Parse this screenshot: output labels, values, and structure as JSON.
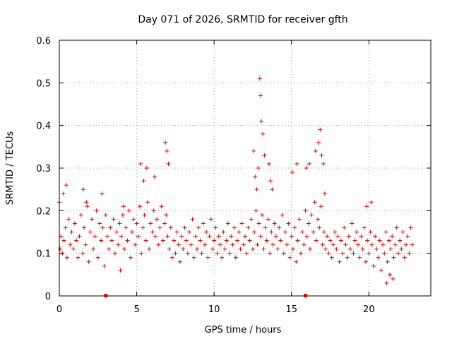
{
  "chart_data": {
    "type": "scatter",
    "title": "Day 071 of 2026, SRMTID for receiver gfth",
    "xlabel": "GPS time / hours",
    "ylabel": "SRMTID / TECUs",
    "xlim": [
      0,
      24
    ],
    "ylim": [
      0,
      0.6
    ],
    "x_ticks": [
      0,
      5,
      10,
      15,
      20
    ],
    "x_tick_labels": [
      "0",
      "5",
      "10",
      "15",
      "20"
    ],
    "y_ticks": [
      0,
      0.1,
      0.2,
      0.3,
      0.4,
      0.5,
      0.6
    ],
    "y_tick_labels": [
      "0",
      "0.1",
      "0.2",
      "0.3",
      "0.4",
      "0.5",
      "0.6"
    ],
    "grid": true,
    "marker": "plus",
    "color": "#e00000",
    "series": [
      {
        "name": "SRMTID",
        "x": [
          0.0,
          0.1,
          0.2,
          0.3,
          0.4,
          0.5,
          0.6,
          0.7,
          0.8,
          0.9,
          1.0,
          1.1,
          1.2,
          1.3,
          1.4,
          1.5,
          1.6,
          1.7,
          1.8,
          1.9,
          2.0,
          2.1,
          2.2,
          2.3,
          2.4,
          2.5,
          2.6,
          2.7,
          2.8,
          2.9,
          3.0,
          3.1,
          3.2,
          3.3,
          3.4,
          3.5,
          3.6,
          3.7,
          3.8,
          3.9,
          4.0,
          4.1,
          4.2,
          4.3,
          4.4,
          4.5,
          4.6,
          4.7,
          4.8,
          4.9,
          5.0,
          5.1,
          5.2,
          5.3,
          5.4,
          5.5,
          5.6,
          5.7,
          5.8,
          5.9,
          6.0,
          6.1,
          6.2,
          6.3,
          6.4,
          6.5,
          6.6,
          6.7,
          6.8,
          6.9,
          7.0,
          7.1,
          7.2,
          7.3,
          7.4,
          7.5,
          7.6,
          7.7,
          7.8,
          7.9,
          8.0,
          8.1,
          8.2,
          8.3,
          8.4,
          8.5,
          8.6,
          8.7,
          8.8,
          8.9,
          9.0,
          9.1,
          9.2,
          9.3,
          9.4,
          9.5,
          9.6,
          9.7,
          9.8,
          9.9,
          10.0,
          10.1,
          10.2,
          10.3,
          10.4,
          10.5,
          10.6,
          10.7,
          10.8,
          10.9,
          11.0,
          11.1,
          11.2,
          11.3,
          11.4,
          11.5,
          11.6,
          11.7,
          11.8,
          11.9,
          12.0,
          12.1,
          12.2,
          12.3,
          12.4,
          12.5,
          12.6,
          12.7,
          12.8,
          12.9,
          13.0,
          13.1,
          13.2,
          13.3,
          13.4,
          13.5,
          13.6,
          13.7,
          13.8,
          13.9,
          14.0,
          14.1,
          14.2,
          14.3,
          14.4,
          14.5,
          14.6,
          14.7,
          14.8,
          14.9,
          15.0,
          15.1,
          15.2,
          15.3,
          15.4,
          15.5,
          15.6,
          15.7,
          15.8,
          15.9,
          16.0,
          16.1,
          16.2,
          16.3,
          16.4,
          16.5,
          16.6,
          16.7,
          16.8,
          16.9,
          17.0,
          17.1,
          17.2,
          17.3,
          17.4,
          17.5,
          17.6,
          17.7,
          17.8,
          17.9,
          18.0,
          18.1,
          18.2,
          18.3,
          18.4,
          18.5,
          18.6,
          18.7,
          18.8,
          18.9,
          19.0,
          19.1,
          19.2,
          19.3,
          19.4,
          19.5,
          19.6,
          19.7,
          19.8,
          19.9,
          20.0,
          20.1,
          20.2,
          20.3,
          20.4,
          20.5,
          20.6,
          20.7,
          20.8,
          20.9,
          21.0,
          21.1,
          21.2,
          21.3,
          21.4,
          21.5,
          21.6,
          21.7,
          21.8,
          21.9,
          22.0,
          22.1,
          22.2,
          22.3,
          22.4,
          22.5,
          22.6,
          22.7,
          22.8,
          0.05,
          0.25,
          0.45,
          1.55,
          1.75,
          2.75,
          3.95,
          4.15,
          5.25,
          5.45,
          5.65,
          6.15,
          6.85,
          6.95,
          7.05,
          12.55,
          12.65,
          12.75,
          12.85,
          12.95,
          13.0,
          13.05,
          13.15,
          13.25,
          13.55,
          13.65,
          13.75,
          15.05,
          15.35,
          15.95,
          16.15,
          16.55,
          16.75,
          16.85,
          16.95,
          17.05,
          17.15,
          19.85,
          20.15,
          21.15,
          21.35,
          21.55
        ],
        "y": [
          0.22,
          0.14,
          0.1,
          0.13,
          0.16,
          0.09,
          0.18,
          0.12,
          0.15,
          0.11,
          0.17,
          0.13,
          0.09,
          0.14,
          0.19,
          0.1,
          0.16,
          0.12,
          0.21,
          0.08,
          0.15,
          0.18,
          0.11,
          0.14,
          0.2,
          0.09,
          0.17,
          0.13,
          0.16,
          0.07,
          0.19,
          0.14,
          0.11,
          0.16,
          0.13,
          0.18,
          0.1,
          0.15,
          0.12,
          0.17,
          0.14,
          0.19,
          0.11,
          0.16,
          0.13,
          0.2,
          0.09,
          0.15,
          0.18,
          0.12,
          0.17,
          0.14,
          0.21,
          0.1,
          0.16,
          0.19,
          0.13,
          0.22,
          0.11,
          0.17,
          0.15,
          0.2,
          0.14,
          0.18,
          0.12,
          0.16,
          0.21,
          0.13,
          0.17,
          0.19,
          0.14,
          0.11,
          0.16,
          0.09,
          0.13,
          0.1,
          0.15,
          0.12,
          0.08,
          0.14,
          0.11,
          0.16,
          0.13,
          0.1,
          0.15,
          0.12,
          0.18,
          0.09,
          0.14,
          0.11,
          0.16,
          0.13,
          0.1,
          0.17,
          0.12,
          0.15,
          0.09,
          0.14,
          0.18,
          0.11,
          0.13,
          0.16,
          0.1,
          0.14,
          0.12,
          0.09,
          0.15,
          0.11,
          0.13,
          0.17,
          0.1,
          0.14,
          0.12,
          0.16,
          0.09,
          0.13,
          0.15,
          0.11,
          0.17,
          0.12,
          0.14,
          0.1,
          0.16,
          0.13,
          0.18,
          0.11,
          0.15,
          0.2,
          0.12,
          0.17,
          0.14,
          0.19,
          0.11,
          0.16,
          0.13,
          0.18,
          0.1,
          0.15,
          0.12,
          0.17,
          0.14,
          0.11,
          0.16,
          0.13,
          0.19,
          0.1,
          0.15,
          0.12,
          0.17,
          0.09,
          0.14,
          0.11,
          0.16,
          0.08,
          0.13,
          0.18,
          0.1,
          0.15,
          0.12,
          0.2,
          0.14,
          0.17,
          0.11,
          0.19,
          0.15,
          0.22,
          0.13,
          0.18,
          0.16,
          0.21,
          0.12,
          0.15,
          0.11,
          0.14,
          0.1,
          0.13,
          0.09,
          0.12,
          0.15,
          0.11,
          0.14,
          0.08,
          0.13,
          0.1,
          0.16,
          0.12,
          0.09,
          0.14,
          0.11,
          0.17,
          0.1,
          0.13,
          0.15,
          0.12,
          0.09,
          0.14,
          0.11,
          0.16,
          0.08,
          0.13,
          0.1,
          0.15,
          0.12,
          0.07,
          0.14,
          0.11,
          0.09,
          0.13,
          0.06,
          0.12,
          0.1,
          0.15,
          0.08,
          0.13,
          0.11,
          0.14,
          0.09,
          0.12,
          0.16,
          0.1,
          0.13,
          0.11,
          0.15,
          0.09,
          0.12,
          0.14,
          0.1,
          0.16,
          0.12,
          0.11,
          0.24,
          0.26,
          0.25,
          0.22,
          0.24,
          0.06,
          0.21,
          0.31,
          0.27,
          0.3,
          0.28,
          0.36,
          0.34,
          0.31,
          0.34,
          0.28,
          0.25,
          0.3,
          0.51,
          0.47,
          0.41,
          0.38,
          0.33,
          0.31,
          0.27,
          0.25,
          0.29,
          0.31,
          0.3,
          0.31,
          0.34,
          0.36,
          0.39,
          0.33,
          0.31,
          0.24,
          0.21,
          0.22,
          0.03,
          0.05,
          0.04
        ]
      }
    ],
    "markers_on_axis": [
      3.0,
      15.9
    ]
  }
}
